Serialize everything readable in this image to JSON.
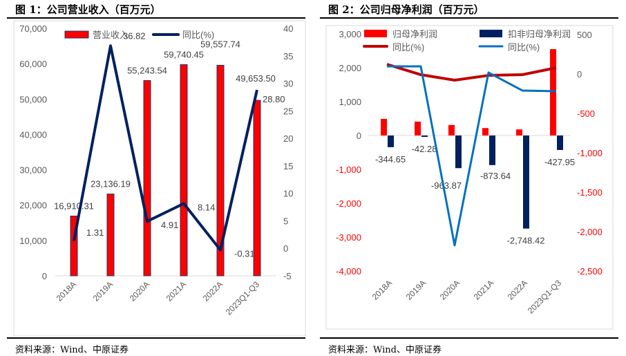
{
  "panels": [
    {
      "title": "图 1：公司营业收入（百万元）",
      "source": "资料来源：Wind、中原证券"
    },
    {
      "title": "图 2：公司归母净利润（百万元）",
      "source": "资料来源：Wind、中原证券"
    }
  ],
  "chart_data": [
    {
      "type": "bar+line",
      "categories": [
        "2018A",
        "2019A",
        "2020A",
        "2021A",
        "2022A",
        "2023Q1-Q3"
      ],
      "series": [
        {
          "name": "营业收入",
          "type": "bar",
          "axis": "left",
          "color": "#ff0000",
          "values": [
            16910.31,
            23136.19,
            55243.54,
            59740.45,
            59557.74,
            49653.5
          ],
          "labels": [
            "16,910.31",
            "23,136.19",
            "55,243.54",
            "59,740.45",
            "59,557.74",
            "49,653.50"
          ]
        },
        {
          "name": "同比(%)",
          "type": "line",
          "axis": "right",
          "color": "#002060",
          "values": [
            1.31,
            36.82,
            4.91,
            8.14,
            -0.31,
            28.8
          ],
          "labels": [
            "1.31",
            "36.82",
            "4.91",
            "8.14",
            "-0.31",
            "28.80"
          ]
        }
      ],
      "y_left": {
        "range": [
          0,
          70000
        ],
        "ticks": [
          "0",
          "10,000",
          "20,000",
          "30,000",
          "40,000",
          "50,000",
          "60,000",
          "70,000"
        ]
      },
      "y_right": {
        "range": [
          -5,
          40
        ],
        "ticks": [
          "-5",
          "0",
          "5",
          "10",
          "15",
          "20",
          "25",
          "30",
          "35",
          "40"
        ]
      },
      "legend": "top",
      "grid": false
    },
    {
      "type": "bar+line",
      "categories": [
        "2018A",
        "2019A",
        "2020A",
        "2021A",
        "2022A",
        "2023Q1-Q3"
      ],
      "series": [
        {
          "name": "归母净利润",
          "type": "bar",
          "axis": "left",
          "color": "#ff0000",
          "values": [
            490,
            410,
            310,
            220,
            180,
            2550
          ]
        },
        {
          "name": "扣非归母净利润",
          "type": "bar",
          "axis": "left",
          "color": "#002060",
          "values": [
            -344.65,
            -42.28,
            -963.87,
            -873.64,
            -2748.42,
            -427.95
          ],
          "labels": [
            "-344.65",
            "-42.28",
            "-963.87",
            "-873.64",
            "-2,748.42",
            "-427.95"
          ]
        },
        {
          "name": "同比(%)",
          "type": "line",
          "axis": "right",
          "color": "#c00000",
          "values": [
            123,
            -9,
            -79,
            -18,
            -9,
            79
          ]
        },
        {
          "name": "同比(%)",
          "type": "line",
          "axis": "right",
          "color": "#0070c0",
          "values": [
            96,
            96,
            -2175,
            18,
            -210,
            -219
          ]
        }
      ],
      "y_left": {
        "range": [
          -4000,
          3000
        ],
        "ticks": [
          "-4,000",
          "-3,000",
          "-2,000",
          "-1,000",
          "0",
          "1,000",
          "2,000",
          "3,000"
        ]
      },
      "y_right": {
        "range": [
          -2500,
          500
        ],
        "ticks": [
          "-2,500",
          "-2,000",
          "-1,500",
          "-1,000",
          "-500",
          "0",
          "500"
        ]
      },
      "legend": "top",
      "grid": false
    }
  ]
}
